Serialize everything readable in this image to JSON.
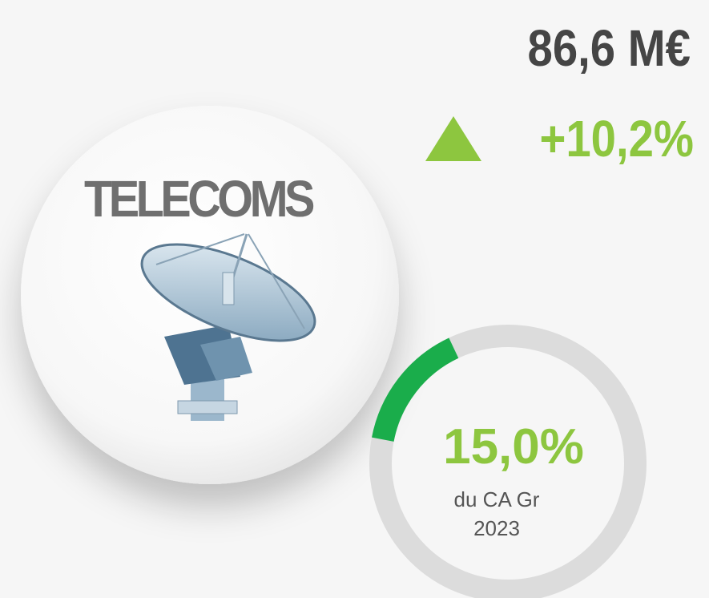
{
  "segment": "TELECOMS",
  "revenue": "86,6 M€",
  "growth": "+10,2%",
  "share": {
    "value": 15,
    "label": "15,0%",
    "caption": [
      "du CA Gr",
      "2023"
    ]
  }
}
